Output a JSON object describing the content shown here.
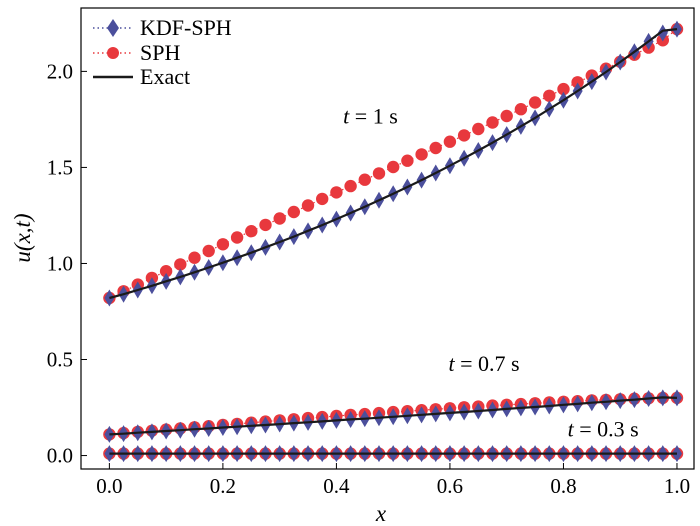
{
  "chart_data": {
    "type": "line",
    "title": "",
    "xlabel": "x",
    "ylabel": "u(x,t)",
    "xlim": [
      -0.05,
      1.03
    ],
    "ylim": [
      -0.07,
      2.33
    ],
    "x_ticks": [
      "0.0",
      "0.2",
      "0.4",
      "0.6",
      "0.8",
      "1.0"
    ],
    "y_ticks": [
      "0.0",
      "0.5",
      "1.0",
      "1.5",
      "2.0"
    ],
    "grid": false,
    "legend": {
      "position": "top-left",
      "entries": [
        "KDF-SPH",
        "SPH",
        "Exact"
      ]
    },
    "annotations": [
      {
        "var": "t",
        "text": " = 1 s",
        "x": 0.46,
        "y": 1.73
      },
      {
        "var": "t",
        "text": " = 0.7 s",
        "x": 0.66,
        "y": 0.44
      },
      {
        "var": "t",
        "text": " = 0.3 s",
        "x": 0.87,
        "y": 0.1
      }
    ],
    "x": [
      0.0,
      0.025,
      0.05,
      0.075,
      0.1,
      0.125,
      0.15,
      0.175,
      0.2,
      0.225,
      0.25,
      0.275,
      0.3,
      0.325,
      0.35,
      0.375,
      0.4,
      0.425,
      0.45,
      0.475,
      0.5,
      0.525,
      0.55,
      0.575,
      0.6,
      0.625,
      0.65,
      0.675,
      0.7,
      0.725,
      0.75,
      0.775,
      0.8,
      0.825,
      0.85,
      0.875,
      0.9,
      0.925,
      0.95,
      0.975,
      1.0
    ],
    "groups": [
      {
        "label": "t = 1 s",
        "series": [
          {
            "name": "Exact",
            "values": [
              0.82,
              0.84,
              0.862,
              0.884,
              0.907,
              0.93,
              0.954,
              0.979,
              1.004,
              1.03,
              1.056,
              1.084,
              1.112,
              1.14,
              1.17,
              1.2,
              1.231,
              1.263,
              1.295,
              1.329,
              1.363,
              1.398,
              1.434,
              1.471,
              1.509,
              1.548,
              1.588,
              1.629,
              1.671,
              1.714,
              1.758,
              1.804,
              1.85,
              1.898,
              1.947,
              1.997,
              2.049,
              2.102,
              2.156,
              2.212,
              2.22
            ]
          },
          {
            "name": "KDF-SPH",
            "values": [
              0.82,
              0.84,
              0.862,
              0.884,
              0.907,
              0.93,
              0.954,
              0.979,
              1.004,
              1.03,
              1.056,
              1.084,
              1.112,
              1.14,
              1.17,
              1.2,
              1.231,
              1.263,
              1.295,
              1.329,
              1.363,
              1.398,
              1.434,
              1.471,
              1.509,
              1.548,
              1.588,
              1.629,
              1.671,
              1.714,
              1.758,
              1.804,
              1.85,
              1.898,
              1.947,
              1.997,
              2.049,
              2.102,
              2.156,
              2.2,
              2.22
            ]
          },
          {
            "name": "SPH",
            "values": [
              0.82,
              0.855,
              0.89,
              0.925,
              0.96,
              0.995,
              1.03,
              1.065,
              1.1,
              1.135,
              1.168,
              1.201,
              1.234,
              1.268,
              1.302,
              1.336,
              1.37,
              1.403,
              1.436,
              1.469,
              1.502,
              1.535,
              1.568,
              1.601,
              1.634,
              1.667,
              1.7,
              1.734,
              1.768,
              1.803,
              1.838,
              1.873,
              1.908,
              1.943,
              1.978,
              2.014,
              2.05,
              2.087,
              2.124,
              2.162,
              2.22
            ]
          }
        ]
      },
      {
        "label": "t = 0.7 s",
        "series": [
          {
            "name": "Exact",
            "values": [
              0.11,
              0.114,
              0.119,
              0.123,
              0.128,
              0.132,
              0.137,
              0.141,
              0.146,
              0.15,
              0.155,
              0.159,
              0.164,
              0.169,
              0.173,
              0.178,
              0.183,
              0.188,
              0.192,
              0.197,
              0.202,
              0.207,
              0.212,
              0.217,
              0.222,
              0.227,
              0.232,
              0.237,
              0.243,
              0.248,
              0.253,
              0.258,
              0.264,
              0.269,
              0.275,
              0.28,
              0.286,
              0.291,
              0.297,
              0.303,
              0.3
            ]
          },
          {
            "name": "KDF-SPH",
            "values": [
              0.11,
              0.114,
              0.119,
              0.123,
              0.128,
              0.132,
              0.137,
              0.141,
              0.146,
              0.15,
              0.155,
              0.159,
              0.164,
              0.169,
              0.173,
              0.178,
              0.183,
              0.188,
              0.192,
              0.197,
              0.202,
              0.207,
              0.212,
              0.217,
              0.222,
              0.227,
              0.232,
              0.237,
              0.243,
              0.248,
              0.253,
              0.258,
              0.264,
              0.269,
              0.275,
              0.28,
              0.286,
              0.291,
              0.297,
              0.3,
              0.3
            ]
          },
          {
            "name": "SPH",
            "values": [
              0.11,
              0.117,
              0.123,
              0.129,
              0.135,
              0.141,
              0.147,
              0.153,
              0.159,
              0.165,
              0.171,
              0.177,
              0.183,
              0.189,
              0.195,
              0.2,
              0.206,
              0.211,
              0.216,
              0.221,
              0.226,
              0.231,
              0.236,
              0.241,
              0.246,
              0.251,
              0.255,
              0.26,
              0.264,
              0.268,
              0.272,
              0.276,
              0.28,
              0.283,
              0.287,
              0.29,
              0.293,
              0.296,
              0.298,
              0.3,
              0.3
            ]
          }
        ]
      },
      {
        "label": "t = 0.3 s",
        "series": [
          {
            "name": "Exact",
            "values": [
              0.01,
              0.01,
              0.01,
              0.01,
              0.01,
              0.01,
              0.01,
              0.01,
              0.01,
              0.01,
              0.01,
              0.01,
              0.01,
              0.01,
              0.01,
              0.01,
              0.01,
              0.01,
              0.01,
              0.01,
              0.01,
              0.01,
              0.01,
              0.01,
              0.01,
              0.01,
              0.01,
              0.01,
              0.01,
              0.01,
              0.01,
              0.01,
              0.01,
              0.01,
              0.01,
              0.01,
              0.01,
              0.01,
              0.01,
              0.01,
              0.01
            ]
          },
          {
            "name": "KDF-SPH",
            "values": [
              0.01,
              0.01,
              0.01,
              0.01,
              0.01,
              0.01,
              0.01,
              0.01,
              0.01,
              0.01,
              0.01,
              0.01,
              0.01,
              0.01,
              0.01,
              0.01,
              0.01,
              0.01,
              0.01,
              0.01,
              0.01,
              0.01,
              0.01,
              0.01,
              0.01,
              0.01,
              0.01,
              0.01,
              0.01,
              0.01,
              0.01,
              0.01,
              0.01,
              0.01,
              0.01,
              0.01,
              0.01,
              0.01,
              0.01,
              0.01,
              0.01
            ]
          },
          {
            "name": "SPH",
            "values": [
              0.01,
              0.01,
              0.01,
              0.01,
              0.01,
              0.01,
              0.01,
              0.01,
              0.01,
              0.01,
              0.01,
              0.01,
              0.01,
              0.01,
              0.01,
              0.01,
              0.01,
              0.01,
              0.01,
              0.01,
              0.01,
              0.01,
              0.01,
              0.01,
              0.01,
              0.01,
              0.01,
              0.01,
              0.01,
              0.01,
              0.01,
              0.01,
              0.01,
              0.01,
              0.01,
              0.01,
              0.01,
              0.01,
              0.01,
              0.01,
              0.01
            ]
          }
        ]
      }
    ],
    "colors": {
      "KDF-SPH": "#4b4f9c",
      "SPH": "#e8383d",
      "Exact": "#1a1a1a"
    }
  }
}
